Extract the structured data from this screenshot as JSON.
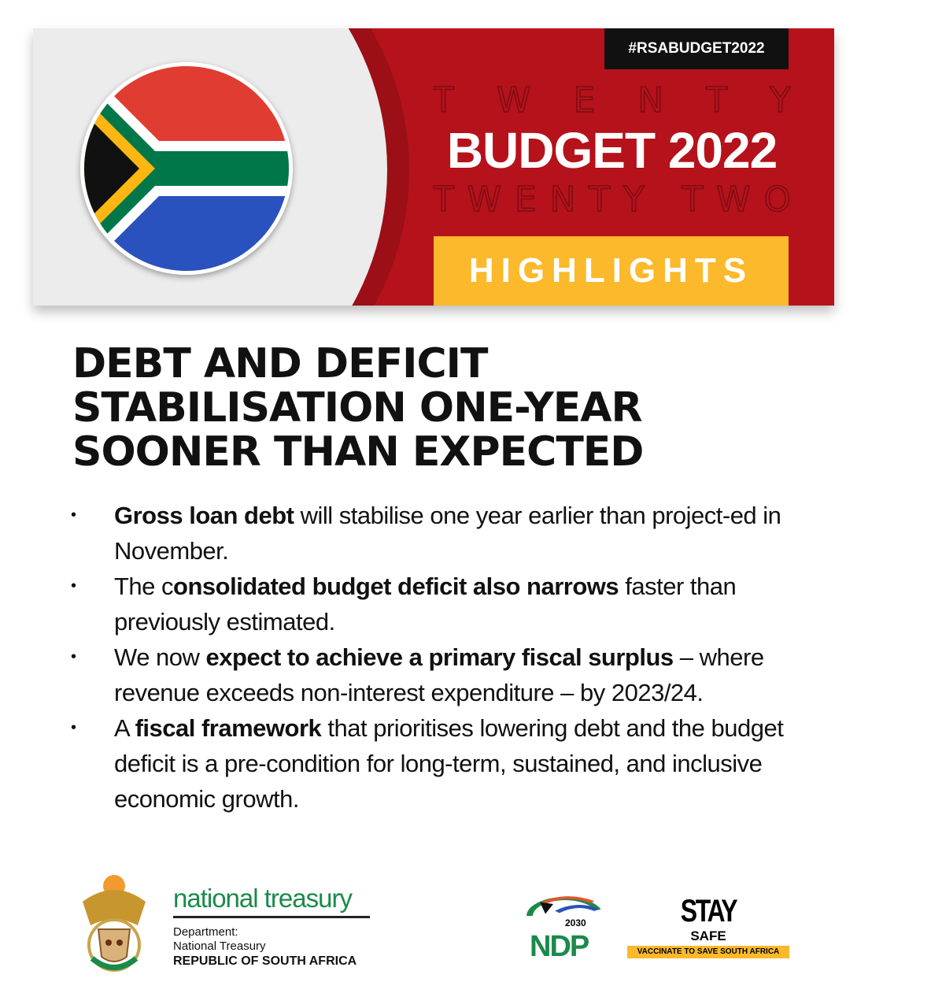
{
  "banner": {
    "hashtag": "#RSABUDGET2022",
    "ghost_top": [
      "T",
      "W",
      "E",
      "N",
      "T",
      "Y"
    ],
    "ghost_bottom": [
      "T",
      "W",
      "E",
      "N",
      "T",
      "Y",
      "",
      "T",
      "W",
      "O"
    ],
    "title": "BUDGET 2022",
    "highlights": "HIGHLIGHTS",
    "colors": {
      "red": "#b5121b",
      "yellow": "#fbb92b"
    }
  },
  "heading": [
    "DEBT AND DEFICIT",
    "STABILISATION ONE-YEAR",
    "SOONER THAN EXPECTED"
  ],
  "bullets": [
    [
      {
        "t": "Gross loan debt",
        "b": true
      },
      {
        "t": " will stabilise one year earlier than project-ed in November.",
        "b": false
      }
    ],
    [
      {
        "t": "The c",
        "b": false
      },
      {
        "t": "onsolidated budget deficit also narrows",
        "b": true
      },
      {
        "t": " faster than previously estimated.",
        "b": false
      }
    ],
    [
      {
        "t": "We now ",
        "b": false
      },
      {
        "t": "expect to achieve a primary fiscal surplus",
        "b": true
      },
      {
        "t": " – where revenue exceeds non-interest expenditure – by 2023/24.",
        "b": false
      }
    ],
    [
      {
        "t": "A ",
        "b": false
      },
      {
        "t": "fiscal framework",
        "b": true
      },
      {
        "t": " that prioritises lowering debt and the budget deficit is a pre-condition for long-term, sustained, and inclusive economic growth.",
        "b": false
      }
    ]
  ],
  "footer": {
    "treasury": "national treasury",
    "dept_lines": [
      "Department:",
      "National Treasury",
      "REPUBLIC OF SOUTH AFRICA"
    ],
    "ndp": "NDP",
    "ndp_year": "2030",
    "stay": "STAY",
    "safe": "SAFE",
    "vaccinate": "VACCINATE TO SAVE SOUTH AFRICA"
  }
}
